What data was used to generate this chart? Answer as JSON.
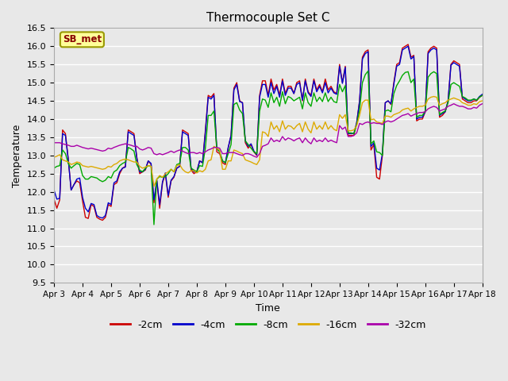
{
  "title": "Thermocouple Set C",
  "xlabel": "Time",
  "ylabel": "Temperature",
  "ylim": [
    9.5,
    16.5
  ],
  "x_tick_labels": [
    "Apr 3",
    "Apr 4",
    "Apr 5",
    "Apr 6",
    "Apr 7",
    "Apr 8",
    "Apr 9",
    "Apr 10",
    "Apr 11",
    "Apr 12",
    "Apr 13",
    "Apr 14",
    "Apr 15",
    "Apr 16",
    "Apr 17",
    "Apr 18"
  ],
  "yticks": [
    9.5,
    10.0,
    10.5,
    11.0,
    11.5,
    12.0,
    12.5,
    13.0,
    13.5,
    14.0,
    14.5,
    15.0,
    15.5,
    16.0,
    16.5
  ],
  "colors": {
    "-2cm": "#cc0000",
    "-4cm": "#0000cc",
    "-8cm": "#00aa00",
    "-16cm": "#ddaa00",
    "-32cm": "#aa00aa"
  },
  "legend_label": "SB_met",
  "legend_box_color": "#ffff99",
  "legend_text_color": "#880000",
  "legend_edge_color": "#999900",
  "plot_bg_color": "#e8e8e8",
  "grid_color": "#ffffff",
  "series": {
    "-2cm": [
      11.8,
      11.55,
      11.78,
      13.7,
      13.6,
      12.9,
      12.05,
      12.2,
      12.3,
      12.25,
      11.75,
      11.3,
      11.27,
      11.65,
      11.6,
      11.3,
      11.25,
      11.22,
      11.3,
      11.65,
      11.6,
      12.2,
      12.25,
      12.5,
      12.65,
      12.7,
      13.7,
      13.65,
      13.6,
      12.95,
      12.5,
      12.55,
      12.6,
      12.85,
      12.75,
      11.7,
      12.3,
      11.55,
      12.25,
      12.5,
      11.85,
      12.3,
      12.4,
      12.65,
      12.7,
      13.7,
      13.65,
      13.6,
      12.6,
      12.5,
      12.55,
      12.85,
      12.8,
      13.68,
      14.65,
      14.6,
      14.7,
      13.1,
      13.05,
      12.8,
      12.75,
      13.2,
      13.55,
      14.85,
      15.0,
      14.5,
      14.45,
      13.35,
      13.2,
      13.3,
      13.1,
      13.0,
      14.65,
      15.05,
      15.05,
      14.65,
      15.1,
      14.8,
      14.95,
      14.65,
      15.1,
      14.7,
      14.9,
      14.9,
      14.7,
      15.0,
      15.05,
      14.5,
      15.1,
      14.75,
      14.65,
      15.1,
      14.8,
      14.95,
      14.75,
      15.1,
      14.8,
      14.9,
      14.75,
      14.7,
      15.5,
      15.0,
      15.45,
      13.55,
      13.55,
      13.55,
      13.9,
      14.5,
      15.7,
      15.85,
      15.9,
      13.15,
      13.3,
      12.4,
      12.35,
      13.0,
      14.45,
      14.5,
      14.4,
      15.0,
      15.5,
      15.55,
      15.95,
      16.0,
      16.05,
      15.7,
      15.75,
      13.95,
      14.0,
      14.0,
      14.2,
      15.85,
      15.95,
      16.0,
      15.95,
      14.05,
      14.1,
      14.2,
      14.5,
      15.5,
      15.6,
      15.55,
      15.5,
      14.55,
      14.5,
      14.45,
      14.45,
      14.5,
      14.5,
      14.6,
      14.65
    ],
    "-4cm": [
      12.05,
      11.8,
      11.82,
      13.6,
      13.55,
      12.88,
      12.05,
      12.2,
      12.35,
      12.38,
      11.85,
      11.55,
      11.45,
      11.68,
      11.65,
      11.35,
      11.3,
      11.28,
      11.35,
      11.7,
      11.65,
      12.25,
      12.3,
      12.55,
      12.65,
      12.68,
      13.65,
      13.6,
      13.55,
      12.92,
      12.55,
      12.55,
      12.62,
      12.85,
      12.78,
      11.78,
      12.32,
      11.65,
      12.28,
      12.52,
      11.9,
      12.32,
      12.42,
      12.65,
      12.7,
      13.65,
      13.6,
      13.55,
      12.65,
      12.55,
      12.55,
      12.85,
      12.8,
      13.62,
      14.6,
      14.55,
      14.65,
      13.2,
      13.1,
      12.85,
      12.8,
      13.22,
      13.55,
      14.8,
      14.95,
      14.48,
      14.45,
      13.4,
      13.25,
      13.32,
      13.12,
      13.02,
      14.6,
      14.95,
      14.95,
      14.6,
      15.0,
      14.7,
      14.9,
      14.6,
      15.05,
      14.65,
      14.85,
      14.85,
      14.7,
      14.95,
      15.0,
      14.52,
      15.05,
      14.72,
      14.62,
      15.05,
      14.75,
      14.9,
      14.72,
      15.0,
      14.72,
      14.85,
      14.72,
      14.68,
      15.45,
      14.98,
      15.42,
      13.6,
      13.6,
      13.6,
      13.9,
      14.48,
      15.65,
      15.8,
      15.85,
      13.25,
      13.35,
      12.65,
      12.6,
      13.05,
      14.45,
      14.5,
      14.42,
      14.95,
      15.45,
      15.5,
      15.9,
      15.95,
      16.0,
      15.65,
      15.72,
      14.0,
      14.05,
      14.05,
      14.2,
      15.8,
      15.9,
      15.95,
      15.9,
      14.1,
      14.15,
      14.2,
      14.5,
      15.48,
      15.55,
      15.5,
      15.45,
      14.6,
      14.55,
      14.5,
      14.5,
      14.55,
      14.52,
      14.62,
      14.68
    ],
    "-8cm": [
      12.65,
      12.7,
      12.72,
      13.15,
      13.05,
      12.78,
      12.65,
      12.72,
      12.78,
      12.75,
      12.45,
      12.35,
      12.35,
      12.42,
      12.4,
      12.38,
      12.32,
      12.28,
      12.32,
      12.42,
      12.38,
      12.55,
      12.6,
      12.72,
      12.78,
      12.82,
      13.22,
      13.18,
      13.12,
      12.75,
      12.6,
      12.55,
      12.65,
      12.72,
      12.7,
      11.1,
      12.35,
      12.42,
      12.4,
      12.42,
      12.5,
      12.62,
      12.55,
      12.75,
      12.78,
      13.22,
      13.22,
      13.15,
      12.65,
      12.6,
      12.55,
      12.72,
      12.7,
      13.2,
      14.1,
      14.1,
      14.22,
      13.2,
      13.1,
      12.85,
      12.8,
      13.05,
      13.3,
      14.4,
      14.45,
      14.25,
      14.15,
      13.4,
      13.3,
      13.2,
      13.1,
      13.05,
      14.22,
      14.55,
      14.52,
      14.32,
      14.72,
      14.45,
      14.6,
      14.35,
      14.75,
      14.42,
      14.62,
      14.58,
      14.5,
      14.55,
      14.6,
      14.28,
      14.72,
      14.45,
      14.35,
      14.72,
      14.48,
      14.6,
      14.48,
      14.72,
      14.48,
      14.6,
      14.48,
      14.45,
      14.95,
      14.75,
      14.92,
      13.62,
      13.62,
      13.6,
      13.85,
      14.25,
      15.0,
      15.22,
      15.32,
      13.32,
      13.4,
      13.1,
      13.08,
      13.0,
      14.22,
      14.25,
      14.2,
      14.7,
      14.92,
      15.05,
      15.2,
      15.28,
      15.3,
      15.0,
      15.1,
      14.05,
      14.1,
      14.1,
      14.22,
      15.15,
      15.25,
      15.3,
      15.25,
      14.12,
      14.18,
      14.22,
      14.45,
      14.95,
      15.0,
      14.95,
      14.9,
      14.62,
      14.58,
      14.52,
      14.52,
      14.55,
      14.52,
      14.6,
      14.65
    ],
    "-16cm": [
      12.95,
      12.98,
      13.02,
      12.88,
      12.85,
      12.82,
      12.75,
      12.78,
      12.82,
      12.8,
      12.72,
      12.7,
      12.68,
      12.7,
      12.68,
      12.66,
      12.64,
      12.62,
      12.64,
      12.7,
      12.68,
      12.75,
      12.78,
      12.85,
      12.88,
      12.9,
      12.88,
      12.85,
      12.82,
      12.82,
      12.7,
      12.65,
      12.68,
      12.72,
      12.7,
      12.15,
      12.35,
      12.45,
      12.4,
      12.5,
      12.55,
      12.62,
      12.55,
      12.72,
      12.75,
      12.62,
      12.55,
      12.52,
      12.58,
      12.58,
      12.52,
      12.58,
      12.55,
      12.62,
      12.85,
      12.88,
      13.25,
      13.2,
      13.15,
      12.62,
      12.62,
      12.85,
      12.85,
      13.15,
      13.12,
      13.08,
      13.05,
      12.88,
      12.85,
      12.82,
      12.78,
      12.75,
      12.88,
      13.65,
      13.62,
      13.52,
      13.92,
      13.72,
      13.82,
      13.65,
      13.95,
      13.72,
      13.82,
      13.8,
      13.72,
      13.82,
      13.88,
      13.65,
      13.92,
      13.72,
      13.62,
      13.92,
      13.72,
      13.82,
      13.72,
      13.92,
      13.72,
      13.82,
      13.72,
      13.68,
      14.12,
      14.02,
      14.12,
      13.68,
      13.68,
      13.7,
      13.82,
      14.1,
      14.45,
      14.52,
      14.52,
      13.98,
      14.0,
      13.92,
      13.9,
      13.88,
      14.08,
      14.08,
      14.05,
      14.12,
      14.15,
      14.18,
      14.25,
      14.28,
      14.3,
      14.22,
      14.28,
      14.32,
      14.35,
      14.35,
      14.38,
      14.55,
      14.6,
      14.62,
      14.6,
      14.38,
      14.42,
      14.45,
      14.52,
      14.55,
      14.58,
      14.55,
      14.52,
      14.45,
      14.42,
      14.38,
      14.38,
      14.42,
      14.4,
      14.48,
      14.5
    ],
    "-32cm": [
      13.35,
      13.35,
      13.35,
      13.32,
      13.3,
      13.28,
      13.25,
      13.25,
      13.28,
      13.25,
      13.22,
      13.2,
      13.18,
      13.2,
      13.18,
      13.16,
      13.14,
      13.12,
      13.14,
      13.2,
      13.18,
      13.22,
      13.25,
      13.28,
      13.3,
      13.32,
      13.3,
      13.28,
      13.25,
      13.25,
      13.18,
      13.15,
      13.18,
      13.22,
      13.2,
      13.05,
      13.02,
      13.05,
      13.02,
      13.05,
      13.08,
      13.12,
      13.08,
      13.12,
      13.15,
      13.12,
      13.08,
      13.05,
      13.08,
      13.08,
      13.05,
      13.08,
      13.05,
      13.1,
      13.15,
      13.18,
      13.22,
      13.22,
      13.2,
      13.05,
      13.05,
      13.08,
      13.08,
      13.08,
      13.05,
      13.02,
      13.0,
      13.05,
      13.05,
      13.02,
      12.98,
      12.95,
      13.05,
      13.25,
      13.28,
      13.32,
      13.48,
      13.38,
      13.42,
      13.38,
      13.52,
      13.42,
      13.48,
      13.45,
      13.4,
      13.45,
      13.48,
      13.35,
      13.48,
      13.38,
      13.32,
      13.48,
      13.38,
      13.42,
      13.38,
      13.48,
      13.38,
      13.42,
      13.38,
      13.35,
      13.82,
      13.72,
      13.78,
      13.52,
      13.52,
      13.55,
      13.62,
      13.88,
      13.85,
      13.9,
      13.92,
      13.88,
      13.9,
      13.88,
      13.88,
      13.85,
      13.92,
      13.95,
      13.92,
      13.95,
      14.0,
      14.05,
      14.1,
      14.12,
      14.15,
      14.08,
      14.12,
      14.15,
      14.18,
      14.18,
      14.2,
      14.28,
      14.32,
      14.35,
      14.32,
      14.22,
      14.25,
      14.28,
      14.35,
      14.38,
      14.42,
      14.38,
      14.35,
      14.35,
      14.32,
      14.28,
      14.28,
      14.32,
      14.3,
      14.38,
      14.42
    ]
  }
}
